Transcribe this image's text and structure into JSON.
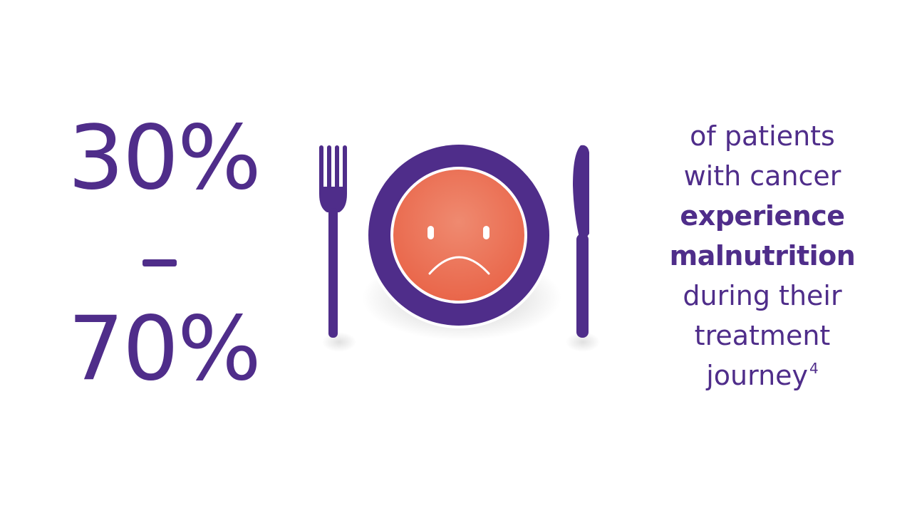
{
  "statistic": {
    "low": "30%",
    "separator": "–",
    "high": "70%"
  },
  "caption": {
    "line1": "of patients",
    "line2": "with cancer",
    "line3": "experience",
    "line4": "malnutrition",
    "line5": "during their",
    "line6": "treatment",
    "line7": "journey",
    "reference": "4"
  },
  "icons": [
    "fork-icon",
    "plate-icon",
    "sad-face-icon",
    "knife-icon"
  ],
  "colors": {
    "primary_purple": "#4f2d8a",
    "face_orange": "#ea6a4c",
    "background": "#ffffff"
  }
}
